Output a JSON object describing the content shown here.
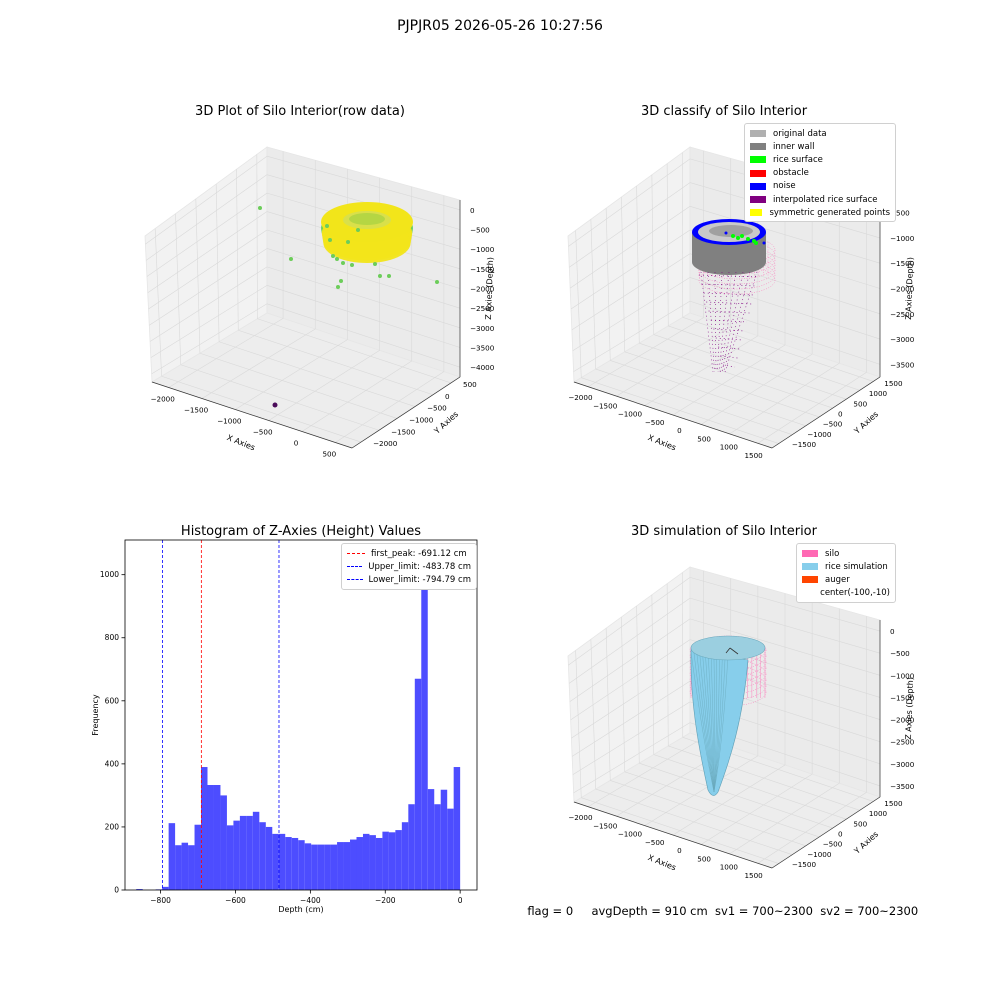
{
  "suptitle": "PJPJR05 2026-05-26 10:27:56",
  "footer": {
    "flag": "flag = 0",
    "avg_depth": "avgDepth = 910 cm",
    "sv1": "sv1 = 700~2300",
    "sv2": "sv2 = 700~2300"
  },
  "colors": {
    "hist_bar": "#4d4dff",
    "first_peak": "#ff0000",
    "limits": "#0000ff",
    "silo": "#ff69b4",
    "rice_sim": "#87ceeb",
    "auger": "#ff4500",
    "rice_surface_yellow": "#f2e51a",
    "rice_surface_green": "#6ccd5a"
  },
  "chart_data": [
    {
      "type": "scatter3d",
      "title": "3D Plot of Silo Interior(row data)",
      "xlabel": "X Axies",
      "ylabel": "Y Axies",
      "zlabel": "Z Axies (Depth)",
      "x_ticks": [
        "−2000",
        "−1500",
        "−1000",
        "−500",
        "0",
        "500"
      ],
      "y_ticks": [
        "500",
        "0",
        "−500",
        "−1000",
        "−1500",
        "−2000"
      ],
      "z_ticks": [
        "0",
        "−500",
        "−1000",
        "−1500",
        "−2000",
        "−2500",
        "−3000",
        "−3500",
        "−4000"
      ],
      "xlim": [
        -2300,
        700
      ],
      "ylim": [
        -2100,
        700
      ],
      "zlim": [
        -4100,
        0
      ],
      "grid": true
    },
    {
      "type": "scatter3d",
      "title": "3D classify of Silo Interior",
      "xlabel": "X Axies",
      "ylabel": "Y Axies",
      "zlabel": "Z Axies (Depth)",
      "x_ticks": [
        "−2000",
        "−1500",
        "−1000",
        "−500",
        "0",
        "500",
        "1000",
        "1500"
      ],
      "y_ticks": [
        "1500",
        "1000",
        "500",
        "0",
        "−500",
        "−1000",
        "−1500"
      ],
      "z_ticks": [
        "−500",
        "−1000",
        "−1500",
        "−2000",
        "−2500",
        "−3000",
        "−3500"
      ],
      "xlim": [
        -2100,
        1700
      ],
      "ylim": [
        -1700,
        1700
      ],
      "zlim": [
        -3700,
        0
      ],
      "grid": true,
      "legend_position": "top-right",
      "legend": [
        {
          "label": "original data",
          "color": "#b0b0b0"
        },
        {
          "label": "inner wall",
          "color": "#808080"
        },
        {
          "label": "rice surface",
          "color": "#00ff00"
        },
        {
          "label": "obstacle",
          "color": "#ff0000"
        },
        {
          "label": "noise",
          "color": "#0000ff"
        },
        {
          "label": "interpolated rice surface",
          "color": "#800080"
        },
        {
          "label": "symmetric generated points",
          "color": "#ffff00"
        }
      ]
    },
    {
      "type": "bar",
      "title": "Histogram of Z-Axies (Height) Values",
      "xlabel": "Depth (cm)",
      "ylabel": "Frequency",
      "xlim": [
        -895,
        45
      ],
      "ylim": [
        0,
        1110
      ],
      "x_ticks": [
        {
          "value": -800,
          "label": "−800"
        },
        {
          "value": -600,
          "label": "−600"
        },
        {
          "value": -400,
          "label": "−400"
        },
        {
          "value": -200,
          "label": "−200"
        },
        {
          "value": 0,
          "label": "0"
        }
      ],
      "y_ticks": [
        0,
        200,
        400,
        600,
        800,
        1000
      ],
      "bin_start": -865,
      "bin_width": 17.3,
      "values": [
        3,
        0,
        0,
        2,
        10,
        212,
        142,
        150,
        142,
        207,
        390,
        333,
        333,
        300,
        205,
        220,
        235,
        235,
        248,
        215,
        200,
        178,
        178,
        168,
        165,
        158,
        148,
        144,
        144,
        144,
        144,
        152,
        152,
        160,
        168,
        178,
        174,
        165,
        185,
        183,
        190,
        215,
        272,
        670,
        1060,
        320,
        272,
        318,
        258,
        390
      ],
      "vlines": [
        {
          "name": "first_peak: -691.12 cm",
          "x": -691.12,
          "color_key": "first_peak"
        },
        {
          "name": "Upper_limit: -483.78 cm",
          "x": -483.78,
          "color_key": "limits"
        },
        {
          "name": "Lower_limit: -794.79 cm",
          "x": -794.79,
          "color_key": "limits"
        }
      ],
      "legend_position": "top-right"
    },
    {
      "type": "surface3d",
      "title": "3D simulation of Silo Interior",
      "xlabel": "X Axies",
      "ylabel": "Y Axies",
      "zlabel": "Z Axies (Depth)",
      "x_ticks": [
        "−2000",
        "−1500",
        "−1000",
        "−500",
        "0",
        "500",
        "1000",
        "1500"
      ],
      "y_ticks": [
        "1500",
        "1000",
        "500",
        "0",
        "−500",
        "−1000",
        "−1500"
      ],
      "z_ticks": [
        "0",
        "−500",
        "−1000",
        "−1500",
        "−2000",
        "−2500",
        "−3000",
        "−3500"
      ],
      "xlim": [
        -2100,
        1700
      ],
      "ylim": [
        -1700,
        1700
      ],
      "zlim": [
        -3700,
        200
      ],
      "grid": true,
      "legend_position": "top-right",
      "legend": [
        {
          "label": "silo",
          "color": "#ff69b4"
        },
        {
          "label": "rice simulation",
          "color": "#87ceeb"
        },
        {
          "label": "auger",
          "color": "#ff4500"
        },
        {
          "label": "center(-100,-10)",
          "color": ""
        }
      ]
    }
  ]
}
